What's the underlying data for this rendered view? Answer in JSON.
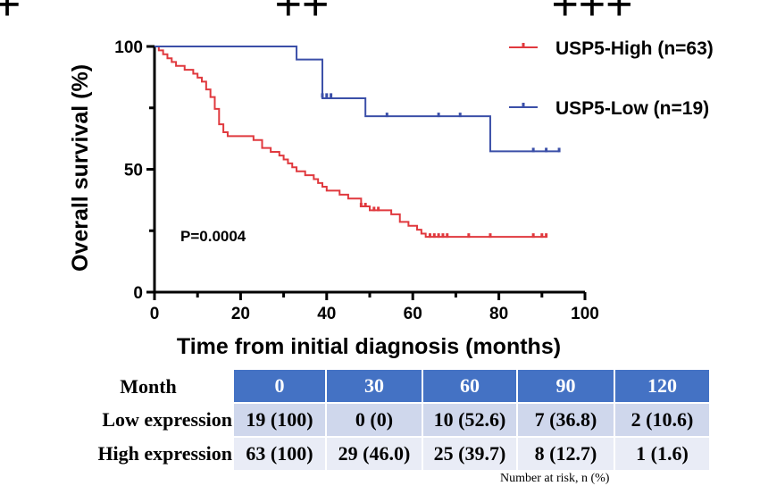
{
  "header_marks": [
    "+",
    "++",
    "+++"
  ],
  "chart_data": {
    "type": "line",
    "subtype": "kaplan-meier",
    "xlabel": "Time from initial diagnosis (months)",
    "ylabel": "Overall survival (%)",
    "xlim": [
      0,
      100
    ],
    "ylim": [
      0,
      100
    ],
    "xticks": [
      0,
      20,
      40,
      60,
      80,
      100
    ],
    "yticks": [
      0,
      50,
      100
    ],
    "annotation": "P=0.0004",
    "legend_position": "top-right",
    "grid": false,
    "series": [
      {
        "name": "USP5-High (n=63)",
        "color": "#e0393e",
        "steps": [
          [
            0,
            100
          ],
          [
            1,
            98.4
          ],
          [
            2,
            96.8
          ],
          [
            3,
            95.2
          ],
          [
            4,
            93.7
          ],
          [
            5,
            92.1
          ],
          [
            7,
            90.5
          ],
          [
            9,
            88.9
          ],
          [
            10,
            87.3
          ],
          [
            11,
            85.7
          ],
          [
            12,
            82.5
          ],
          [
            13,
            79.4
          ],
          [
            14,
            74.6
          ],
          [
            15,
            68.3
          ],
          [
            16,
            65.1
          ],
          [
            17,
            63.5
          ],
          [
            23,
            61.9
          ],
          [
            25,
            58.7
          ],
          [
            27,
            57.1
          ],
          [
            29,
            55.6
          ],
          [
            30,
            54
          ],
          [
            31,
            52.4
          ],
          [
            32,
            50.8
          ],
          [
            33,
            49.2
          ],
          [
            35,
            47.6
          ],
          [
            37,
            46
          ],
          [
            38,
            44.4
          ],
          [
            39,
            42.9
          ],
          [
            40,
            41.3
          ],
          [
            43,
            39.7
          ],
          [
            45,
            38.1
          ],
          [
            48,
            34.9
          ],
          [
            50,
            33.3
          ],
          [
            55,
            31.7
          ],
          [
            57,
            28.6
          ],
          [
            59,
            27
          ],
          [
            61,
            25.4
          ],
          [
            62,
            23.8
          ],
          [
            63,
            22.5
          ],
          [
            91,
            22.5
          ]
        ],
        "censored": [
          [
            48,
            34.9
          ],
          [
            49,
            34.9
          ],
          [
            51,
            33.3
          ],
          [
            52,
            33.3
          ],
          [
            64,
            22.5
          ],
          [
            65,
            22.5
          ],
          [
            66,
            22.5
          ],
          [
            67,
            22.5
          ],
          [
            68,
            22.5
          ],
          [
            73,
            22.5
          ],
          [
            78,
            22.5
          ],
          [
            88,
            22.5
          ],
          [
            90,
            22.5
          ],
          [
            91,
            22.5
          ]
        ]
      },
      {
        "name": "USP5-Low (n=19)",
        "color": "#3b4fa8",
        "steps": [
          [
            0,
            100
          ],
          [
            33,
            94.7
          ],
          [
            39,
            78.9
          ],
          [
            49,
            71.6
          ],
          [
            78,
            57.3
          ],
          [
            94,
            57.3
          ]
        ],
        "censored": [
          [
            39,
            79.5
          ],
          [
            40,
            79.5
          ],
          [
            41,
            79.5
          ],
          [
            54,
            71.6
          ],
          [
            66,
            71.6
          ],
          [
            71,
            71.6
          ],
          [
            88,
            57.3
          ],
          [
            91,
            57.3
          ],
          [
            94,
            57.3
          ]
        ]
      }
    ]
  },
  "risk_table": {
    "corner_label": "Month",
    "headers": [
      "0",
      "30",
      "60",
      "90",
      "120"
    ],
    "rows": [
      {
        "label": "Low expression",
        "cells": [
          "19 (100)",
          "0 (0)",
          "10 (52.6)",
          "7 (36.8)",
          "2 (10.6)"
        ]
      },
      {
        "label": "High expression",
        "cells": [
          "63 (100)",
          "29 (46.0)",
          "25 (39.7)",
          "8 (12.7)",
          "1 (1.6)"
        ]
      }
    ]
  },
  "footnote": "Number at risk, n (%)"
}
